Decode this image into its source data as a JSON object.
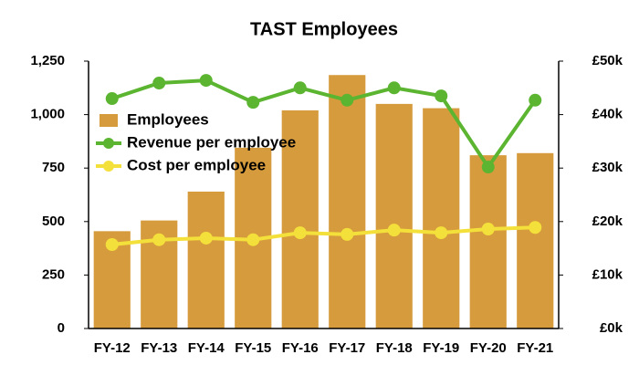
{
  "chart_data": {
    "type": "combo",
    "title": "TAST Employees",
    "categories": [
      "FY-12",
      "FY-13",
      "FY-14",
      "FY-15",
      "FY-16",
      "FY-17",
      "FY-18",
      "FY-19",
      "FY-20",
      "FY-21"
    ],
    "series": [
      {
        "name": "Employees",
        "type": "bar",
        "color": "#d69b3c",
        "values": [
          455,
          505,
          640,
          845,
          1020,
          1185,
          1050,
          1030,
          810,
          820
        ]
      },
      {
        "name": "Revenue per employee",
        "type": "line",
        "axis": "y2",
        "color": "#5cb531",
        "values": [
          43.0,
          45.9,
          46.4,
          42.3,
          45.0,
          42.7,
          45.0,
          43.5,
          30.2,
          42.7
        ]
      },
      {
        "name": "Cost per employee",
        "type": "line",
        "axis": "y2",
        "color": "#f4e03a",
        "values": [
          15.7,
          16.6,
          16.9,
          16.6,
          17.9,
          17.6,
          18.4,
          17.9,
          18.6,
          18.9
        ]
      }
    ],
    "ylim": [
      0,
      1250
    ],
    "yticks": [
      0,
      250,
      500,
      750,
      {
        "value": 1000,
        "label": "1,000"
      },
      {
        "value": 1250,
        "label": "1,250"
      }
    ],
    "y2lim": [
      0,
      50
    ],
    "y2ticks": [
      {
        "value": 0,
        "label": "£0k"
      },
      {
        "value": 10,
        "label": "£10k"
      },
      {
        "value": 20,
        "label": "£20k"
      },
      {
        "value": 30,
        "label": "£30k"
      },
      {
        "value": 40,
        "label": "£40k"
      },
      {
        "value": 50,
        "label": "£50k"
      }
    ],
    "grid": false,
    "legend": "upper-left"
  }
}
